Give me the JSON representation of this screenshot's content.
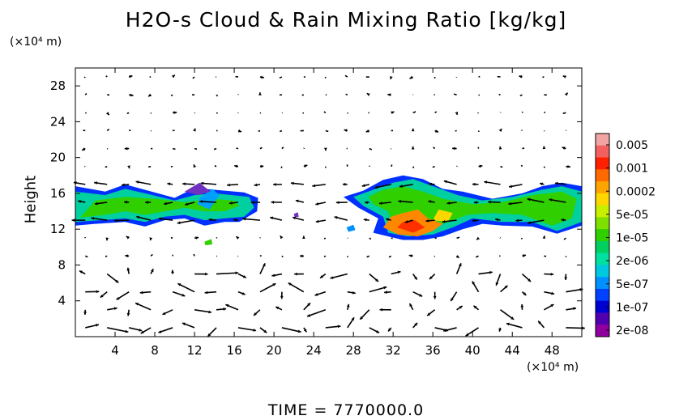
{
  "chart_data": {
    "type": "heatmap",
    "title": "H2O-s Cloud & Rain Mixing Ratio [kg/kg]",
    "ylabel": "Height",
    "y_unit": "(×10⁴ m)",
    "x_unit": "(×10⁴ m)",
    "x_ticks": [
      4,
      8,
      12,
      16,
      20,
      24,
      28,
      32,
      36,
      40,
      44,
      48
    ],
    "y_ticks": [
      4,
      8,
      12,
      16,
      20,
      24,
      28
    ],
    "xlim": [
      0,
      51
    ],
    "ylim": [
      0,
      30
    ],
    "time_label": "TIME = 7770000.0",
    "colorbar": {
      "labels": [
        "0.005",
        "0.001",
        "0.0002",
        "5e-05",
        "1e-05",
        "2e-06",
        "5e-07",
        "1e-07",
        "2e-08"
      ],
      "colors": [
        "#f2a3a3",
        "#f26060",
        "#ff2000",
        "#ff6a00",
        "#ffa500",
        "#ffd700",
        "#c8ee00",
        "#7fe000",
        "#30d000",
        "#00d060",
        "#00e0a0",
        "#00c8e0",
        "#0090ff",
        "#0040ff",
        "#0000d0",
        "#5000b0",
        "#9000a0"
      ]
    },
    "cloud_regions": [
      {
        "name": "left band",
        "x": [
          0,
          18.5
        ],
        "y": [
          12.5,
          17.5
        ]
      },
      {
        "name": "right band",
        "x": [
          27,
          51
        ],
        "y": [
          10.5,
          18
        ]
      }
    ]
  }
}
